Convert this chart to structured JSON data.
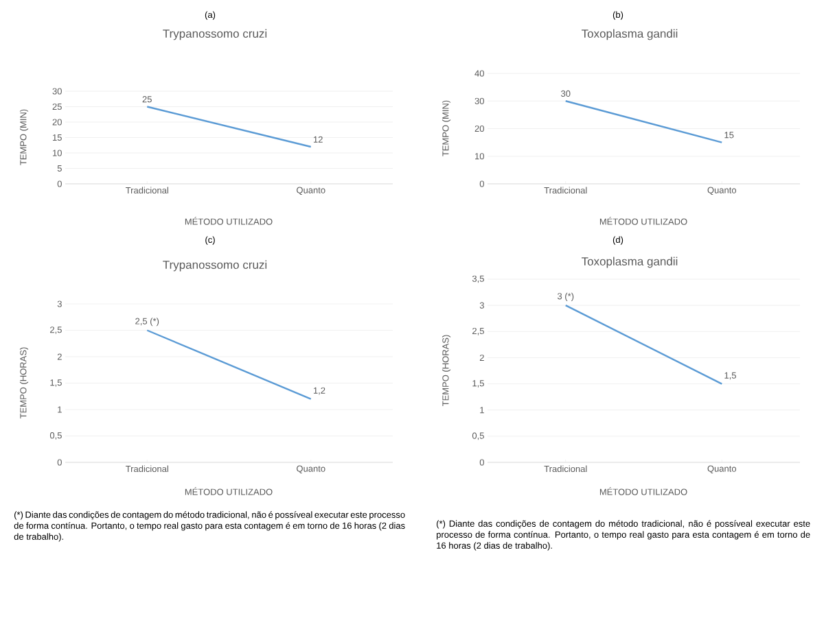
{
  "chart_data": [
    {
      "type": "line",
      "title": "(a)",
      "subtitle": "Trypanossomo cruzi",
      "xlabel": "MÉTODO UTILIZADO",
      "ylabel": "TEMPO (MIN)",
      "categories": [
        "Tradicional",
        "Quanto"
      ],
      "series": [
        {
          "color": "#5b9bd5",
          "values": [
            25,
            12
          ],
          "value_labels": [
            "25",
            "12"
          ]
        }
      ],
      "ylim": [
        0,
        30
      ],
      "yticks": [
        0,
        5,
        10,
        15,
        20,
        25,
        30
      ],
      "grid": "y",
      "marker": "none"
    },
    {
      "type": "line",
      "title": "(b)",
      "subtitle": "Toxoplasma gandii",
      "xlabel": "MÉTODO UTILIZADO",
      "ylabel": "TEMPO (MIN)",
      "categories": [
        "Tradicional",
        "Quanto"
      ],
      "series": [
        {
          "color": "#5b9bd5",
          "values": [
            30,
            15
          ],
          "value_labels": [
            "30",
            "15"
          ]
        }
      ],
      "ylim": [
        0,
        40
      ],
      "yticks": [
        0,
        10,
        20,
        30,
        40
      ],
      "grid": "y",
      "marker": "none"
    },
    {
      "type": "line",
      "title": "(c)",
      "subtitle": "Trypanossomo cruzi",
      "xlabel": "MÉTODO UTILIZADO",
      "ylabel": "TEMPO (HORAS)",
      "categories": [
        "Tradicional",
        "Quanto"
      ],
      "series": [
        {
          "color": "#5b9bd5",
          "values": [
            2.5,
            1.2
          ],
          "value_labels": [
            "2,5 (*)",
            "1,2"
          ]
        }
      ],
      "ylim": [
        0,
        3
      ],
      "yticks": [
        0,
        {
          "value": 0.5,
          "label": "0,5"
        },
        1,
        {
          "value": 1.5,
          "label": "1,5"
        },
        2,
        {
          "value": 2.5,
          "label": "2,5"
        },
        3
      ],
      "grid": "y",
      "marker": "none",
      "annotations": [
        "(*) Diante das condições de contagem do método tradicional, não é possíveal executar este processo de forma contínua. Portanto, o tempo real gasto para esta contagem é em torno de 16 horas (2 dias de trabalho)."
      ]
    },
    {
      "type": "line",
      "title": "(d)",
      "subtitle": "Toxoplasma gandii",
      "xlabel": "MÉTODO UTILIZADO",
      "ylabel": "TEMPO (HORAS)",
      "categories": [
        "Tradicional",
        "Quanto"
      ],
      "series": [
        {
          "color": "#5b9bd5",
          "values": [
            3,
            1.5
          ],
          "value_labels": [
            "3 (*)",
            "1,5"
          ]
        }
      ],
      "ylim": [
        0,
        3.5
      ],
      "yticks": [
        0,
        {
          "value": 0.5,
          "label": "0,5"
        },
        1,
        {
          "value": 1.5,
          "label": "1,5"
        },
        2,
        {
          "value": 2.5,
          "label": "2,5"
        },
        3,
        {
          "value": 3.5,
          "label": "3,5"
        }
      ],
      "grid": "y",
      "marker": "none",
      "annotations": [
        "(*) Diante das condições de contagem do método tradicional, não é possíveal executar este processo de forma contínua. Portanto, o tempo real gasto para esta contagem é em torno de 16 horas (2 dias de trabalho)."
      ]
    }
  ]
}
